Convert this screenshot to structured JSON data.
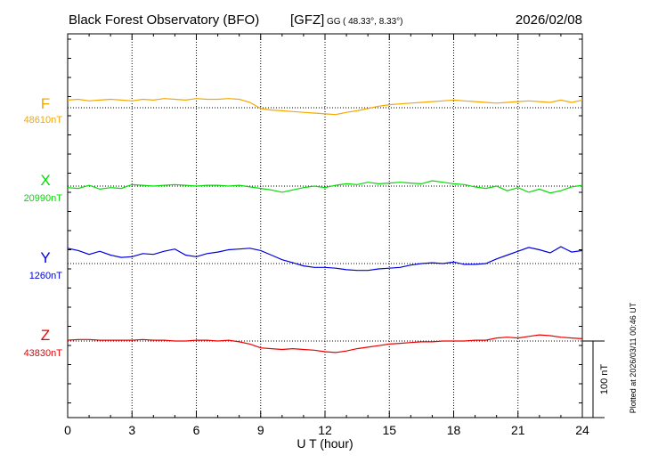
{
  "chart_data": {
    "type": "line",
    "title": "Black Forest Observatory (BFO)",
    "institute": "[GFZ]",
    "coord_system": "GG",
    "coords": "( 48.33°,   8.33°)",
    "date": "2026/02/08",
    "xlabel": "U T (hour)",
    "xlim": [
      0,
      24
    ],
    "x_ticks": [
      "0",
      "3",
      "6",
      "9",
      "12",
      "15",
      "18",
      "21",
      "24"
    ],
    "grid": true,
    "scale_label": "100 nT",
    "scale_nT": 100,
    "footnote": "Plotted at 2026/03/11 00:46 UT",
    "series": [
      {
        "name": "F",
        "baseline_label": "48610nT",
        "baseline_nT": 48610,
        "color": "#f5a800",
        "x": [
          0,
          0.5,
          1,
          1.5,
          2,
          2.5,
          3,
          3.5,
          4,
          4.5,
          5,
          5.5,
          6,
          6.5,
          7,
          7.5,
          8,
          8.5,
          9,
          9.5,
          10,
          10.5,
          11,
          11.5,
          12,
          12.5,
          13,
          13.5,
          14,
          14.5,
          15,
          15.5,
          16,
          16.5,
          17,
          17.5,
          18,
          18.5,
          19,
          19.5,
          20,
          20.5,
          21,
          21.5,
          22,
          22.5,
          23,
          23.5,
          24
        ],
        "y": [
          10,
          11,
          9,
          10,
          11,
          10,
          9,
          11,
          10,
          12,
          11,
          10,
          12,
          11,
          11,
          12,
          11,
          7,
          -1,
          -3,
          -4,
          -5,
          -6,
          -7,
          -8,
          -9,
          -6,
          -4,
          -1,
          2,
          4,
          5,
          6,
          7,
          8,
          9,
          10,
          9,
          8,
          7,
          6,
          7,
          8,
          9,
          8,
          7,
          10,
          7,
          10
        ]
      },
      {
        "name": "X",
        "baseline_label": "20990nT",
        "baseline_nT": 20990,
        "color": "#00dd00",
        "x": [
          0,
          0.5,
          1,
          1.5,
          2,
          2.5,
          3,
          3.5,
          4,
          4.5,
          5,
          5.5,
          6,
          6.5,
          7,
          7.5,
          8,
          8.5,
          9,
          9.5,
          10,
          10.5,
          11,
          11.5,
          12,
          12.5,
          13,
          13.5,
          14,
          14.5,
          15,
          15.5,
          16,
          16.5,
          17,
          17.5,
          18,
          18.5,
          19,
          19.5,
          20,
          20.5,
          21,
          21.5,
          22,
          22.5,
          23,
          23.5,
          24
        ],
        "y": [
          -2,
          -3,
          1,
          -4,
          -2,
          -3,
          2,
          1,
          0,
          1,
          2,
          1,
          0,
          1,
          1,
          0,
          1,
          -1,
          -3,
          -5,
          -8,
          -5,
          -2,
          0,
          -2,
          1,
          3,
          2,
          5,
          3,
          4,
          5,
          4,
          3,
          7,
          5,
          3,
          2,
          -1,
          -3,
          0,
          -6,
          -2,
          -8,
          -4,
          -9,
          -6,
          -1,
          1
        ]
      },
      {
        "name": "Y",
        "baseline_label": "1260nT",
        "baseline_nT": 1260,
        "color": "#0000dd",
        "x": [
          0,
          0.5,
          1,
          1.5,
          2,
          2.5,
          3,
          3.5,
          4,
          4.5,
          5,
          5.5,
          6,
          6.5,
          7,
          7.5,
          8,
          8.5,
          9,
          9.5,
          10,
          10.5,
          11,
          11.5,
          12,
          12.5,
          13,
          13.5,
          14,
          14.5,
          15,
          15.5,
          16,
          16.5,
          17,
          17.5,
          18,
          18.5,
          19,
          19.5,
          20,
          20.5,
          21,
          21.5,
          22,
          22.5,
          23,
          23.5,
          24
        ],
        "y": [
          20,
          17,
          12,
          16,
          11,
          8,
          9,
          13,
          12,
          16,
          19,
          11,
          9,
          13,
          15,
          18,
          19,
          20,
          17,
          11,
          5,
          1,
          -3,
          -5,
          -5,
          -6,
          -8,
          -9,
          -9,
          -7,
          -6,
          -5,
          -2,
          0,
          1,
          0,
          2,
          -1,
          -1,
          0,
          6,
          11,
          16,
          21,
          18,
          14,
          22,
          15,
          17
        ]
      },
      {
        "name": "Z",
        "baseline_label": "43830nT",
        "baseline_nT": 43830,
        "color": "#ee0000",
        "x": [
          0,
          0.5,
          1,
          1.5,
          2,
          2.5,
          3,
          3.5,
          4,
          4.5,
          5,
          5.5,
          6,
          6.5,
          7,
          7.5,
          8,
          8.5,
          9,
          9.5,
          10,
          10.5,
          11,
          11.5,
          12,
          12.5,
          13,
          13.5,
          14,
          14.5,
          15,
          15.5,
          16,
          16.5,
          17,
          17.5,
          18,
          18.5,
          19,
          19.5,
          20,
          20.5,
          21,
          21.5,
          22,
          22.5,
          23,
          23.5,
          24
        ],
        "y": [
          1,
          2,
          2,
          1,
          1,
          1,
          1,
          2,
          1,
          1,
          0,
          0,
          1,
          1,
          0,
          1,
          -1,
          -4,
          -9,
          -10,
          -11,
          -10,
          -11,
          -12,
          -14,
          -15,
          -13,
          -10,
          -8,
          -6,
          -4,
          -3,
          -2,
          -1,
          -1,
          0,
          0,
          0,
          1,
          1,
          4,
          5,
          4,
          6,
          8,
          7,
          5,
          4,
          3
        ]
      }
    ]
  }
}
